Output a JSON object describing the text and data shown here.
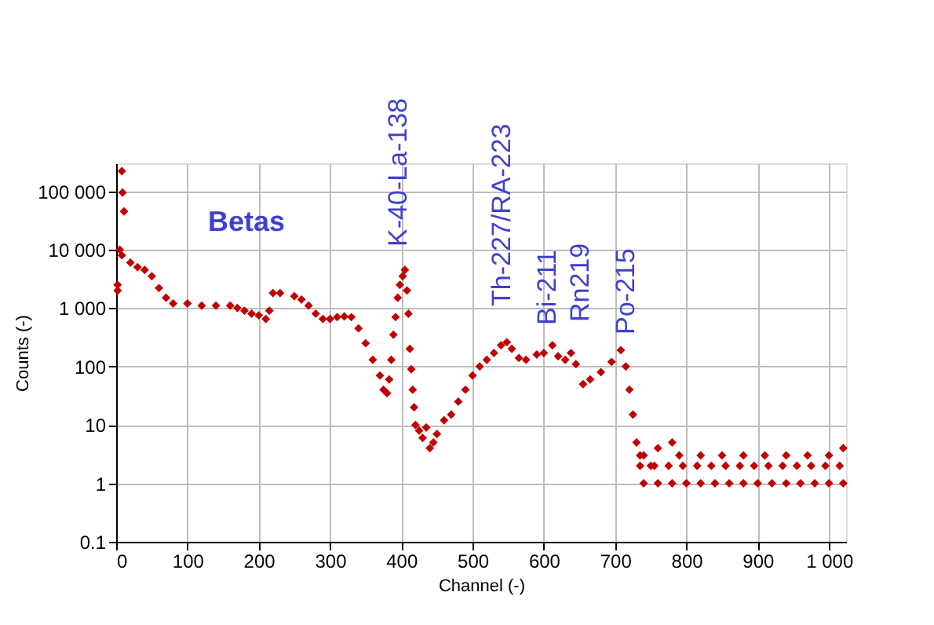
{
  "chart_data": {
    "type": "scatter",
    "xlabel": "Channel (-)",
    "ylabel": "Counts (-)",
    "annotations": [
      "Betas",
      "K-40-La-138",
      "Th-227/RA-223",
      "Bi-211",
      "Rn219",
      "Po-215"
    ],
    "log": "y",
    "grid": true,
    "marker": "diamond",
    "xlim": [
      0,
      1024
    ],
    "xticks": [
      0,
      100,
      200,
      300,
      400,
      500,
      600,
      700,
      800,
      900,
      {
        "value": 1000,
        "label": "1 000"
      }
    ],
    "ylim": [
      0.1,
      300000
    ],
    "yticks": [
      0.1,
      1,
      10,
      100,
      {
        "value": 1000,
        "label": "1 000"
      },
      {
        "value": 10000,
        "label": "10 000"
      },
      {
        "value": 100000,
        "label": "100 000"
      }
    ],
    "series": [
      {
        "color": "#c00000",
        "x": [
          2,
          2,
          8,
          9,
          11,
          5,
          8,
          20,
          30,
          40,
          50,
          60,
          70,
          80,
          100,
          120,
          140,
          160,
          170,
          180,
          190,
          200,
          210,
          215,
          220,
          230,
          250,
          260,
          270,
          280,
          290,
          300,
          310,
          320,
          330,
          340,
          350,
          360,
          370,
          375,
          380,
          383,
          386,
          389,
          392,
          395,
          398,
          402,
          405,
          408,
          410,
          412,
          414,
          416,
          418,
          420,
          425,
          430,
          435,
          440,
          445,
          450,
          460,
          470,
          480,
          490,
          500,
          510,
          520,
          530,
          540,
          548,
          555,
          565,
          575,
          590,
          600,
          612,
          620,
          630,
          638,
          645,
          655,
          665,
          680,
          695,
          708,
          715,
          720,
          725,
          730,
          735,
          740,
          750,
          760,
          780,
          790,
          820,
          850,
          880,
          910,
          940,
          970,
          1000,
          1020,
          735,
          755,
          775,
          795,
          815,
          835,
          855,
          875,
          895,
          915,
          935,
          955,
          975,
          995,
          1015,
          740,
          760,
          780,
          800,
          820,
          840,
          860,
          880,
          900,
          920,
          940,
          960,
          980,
          1000,
          1020
        ],
        "values": [
          2000,
          2500,
          220000,
          95000,
          45000,
          10000,
          8000,
          6000,
          5000,
          4500,
          3500,
          2200,
          1500,
          1200,
          1200,
          1100,
          1100,
          1100,
          1000,
          900,
          800,
          750,
          650,
          900,
          1800,
          1800,
          1600,
          1400,
          1100,
          800,
          650,
          650,
          700,
          720,
          700,
          450,
          250,
          130,
          70,
          40,
          35,
          60,
          130,
          350,
          700,
          1500,
          2500,
          3500,
          4500,
          2000,
          800,
          200,
          90,
          40,
          20,
          10,
          8,
          6,
          9,
          4,
          5,
          7,
          12,
          15,
          25,
          40,
          70,
          100,
          130,
          170,
          230,
          260,
          200,
          140,
          130,
          160,
          170,
          230,
          150,
          130,
          170,
          110,
          50,
          60,
          80,
          120,
          190,
          100,
          40,
          15,
          5,
          3,
          3,
          2,
          4,
          5,
          3,
          3,
          3,
          3,
          3,
          3,
          3,
          3,
          4,
          2,
          2,
          2,
          2,
          2,
          2,
          2,
          2,
          2,
          2,
          2,
          2,
          2,
          2,
          2,
          1,
          1,
          1,
          1,
          1,
          1,
          1,
          1,
          1,
          1,
          1,
          1,
          1,
          1,
          1
        ]
      }
    ]
  }
}
